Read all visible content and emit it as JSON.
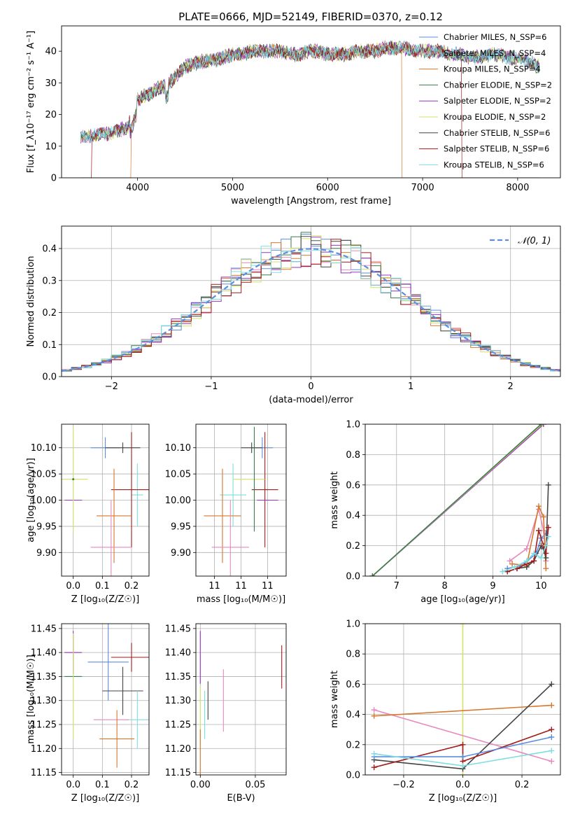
{
  "figure": {
    "title": "PLATE=0666, MJD=52149, FIBERID=0370, z=0.12"
  },
  "colors": {
    "Chabrier MILES": "#5b8ee0",
    "Salpeter MILES": "#e889bd",
    "Kroupa MILES": "#d9772b",
    "Chabrier ELODIE": "#3d7a4d",
    "Salpeter ELODIE": "#9b30c4",
    "Kroupa ELODIE": "#d4e26a",
    "Chabrier STELIB": "#444444",
    "Salpeter STELIB": "#a31c1c",
    "Kroupa STELIB": "#7fdde0",
    "gauss": "#5b8ee0",
    "grid": "#b0b0b0"
  },
  "chart_data": [
    {
      "id": "spectrum",
      "type": "line",
      "xlabel": "wavelength [Angstrom, rest frame]",
      "ylabel": "Flux [f_λ10⁻¹⁷ erg cm⁻² s⁻¹ A⁻¹]",
      "xlim": [
        3200,
        8450
      ],
      "ylim": [
        0,
        48
      ],
      "xticks": [
        4000,
        5000,
        6000,
        7000,
        8000
      ],
      "yticks": [
        0,
        10,
        20,
        30,
        40
      ],
      "grid": false,
      "legend": "top-right",
      "legend_entries": [
        "Chabrier MILES, N_SSP=6",
        "Salpeter MILES, N_SSP=4",
        "Kroupa MILES, N_SSP=4",
        "Chabrier ELODIE, N_SSP=2",
        "Salpeter ELODIE, N_SSP=2",
        "Kroupa ELODIE, N_SSP=2",
        "Chabrier STELIB, N_SSP=6",
        "Salpeter STELIB, N_SSP=6",
        "Kroupa STELIB, N_SSP=6"
      ],
      "continuum": {
        "x": [
          3400,
          3500,
          3600,
          3700,
          3800,
          3900,
          3950,
          4000,
          4100,
          4200,
          4300,
          4400,
          4500,
          4600,
          4700,
          4800,
          4900,
          5000,
          5100,
          5200,
          5300,
          5400,
          5500,
          5600,
          5700,
          5800,
          5900,
          6000,
          6100,
          6200,
          6300,
          6400,
          6500,
          6600,
          6700,
          6800,
          6900,
          7000,
          7100,
          7200,
          7300,
          7400,
          7500,
          7600,
          7700,
          7800,
          7900,
          8000,
          8100,
          8230
        ],
        "y": [
          13,
          13,
          14,
          14,
          15,
          16,
          21,
          25,
          26,
          28,
          29,
          32,
          35,
          36,
          37,
          37,
          38,
          39,
          39,
          40,
          40,
          40,
          40,
          39,
          39,
          40,
          40,
          39,
          39,
          39,
          40,
          40,
          40,
          41,
          41,
          41,
          40,
          40,
          40,
          40,
          39,
          39,
          38,
          38,
          39,
          39,
          38,
          38,
          37,
          35
        ]
      },
      "drop_edges": [
        {
          "model": "Salpeter STELIB",
          "wl": [
            3520,
            7410
          ]
        },
        {
          "model": "Kroupa MILES",
          "wl": [
            3930,
            6780
          ]
        }
      ]
    },
    {
      "id": "residuals",
      "type": "histogram",
      "xlabel": "(data-model)/error",
      "ylabel": "Normed distribution",
      "xlim": [
        -2.5,
        2.5
      ],
      "ylim": [
        0,
        0.47
      ],
      "xticks": [
        -2,
        -1,
        0,
        1,
        2
      ],
      "yticks": [
        0.0,
        0.1,
        0.2,
        0.3,
        0.4
      ],
      "grid": true,
      "legend": "top-right",
      "gauss_label": "𝒩(0, 1)"
    },
    {
      "id": "age-vs-Z",
      "type": "errorbar",
      "xlabel": "Z [log₁₀(Z/Z☉)]",
      "ylabel": "age  [log₁₀(age/yr)]",
      "xlim": [
        -0.04,
        0.26
      ],
      "ylim": [
        9.855,
        10.145
      ],
      "xticks": [
        0.0,
        0.1,
        0.2
      ],
      "yticks": [
        9.9,
        9.95,
        10.0,
        10.05,
        10.1
      ],
      "points": [
        {
          "model": "Chabrier MILES",
          "x": 0.11,
          "y": 10.1,
          "xerr": 0.05,
          "yerr": 0.02
        },
        {
          "model": "Chabrier STELIB",
          "x": 0.17,
          "y": 10.1,
          "xerr": 0.06,
          "yerr": 0.01
        },
        {
          "model": "Kroupa STELIB",
          "x": 0.22,
          "y": 10.01,
          "xerr": 0.02,
          "yerr": 0.06
        },
        {
          "model": "Salpeter STELIB",
          "x": 0.2,
          "y": 10.02,
          "xerr": 0.07,
          "yerr": 0.11
        },
        {
          "model": "Salpeter ELODIE",
          "x": 0.0,
          "y": 10.0,
          "xerr": 0.03,
          "yerr": 0.0
        },
        {
          "model": "Kroupa ELODIE",
          "x": 0.0,
          "y": 10.04,
          "xerr": 0.05,
          "yerr": 0.1
        },
        {
          "model": "Chabrier ELODIE",
          "x": 0.0,
          "y": 10.04,
          "xerr": 0.0,
          "yerr": 0.0
        },
        {
          "model": "Kroupa MILES",
          "x": 0.14,
          "y": 9.97,
          "xerr": 0.06,
          "yerr": 0.09
        },
        {
          "model": "Salpeter MILES",
          "x": 0.13,
          "y": 9.91,
          "xerr": 0.07,
          "yerr": 0.09
        }
      ]
    },
    {
      "id": "age-vs-mass",
      "type": "errorbar",
      "xlabel": "mass [log₁₀(M/M☉)]",
      "ylabel": "",
      "xlim": [
        11.13,
        11.47
      ],
      "ylim": [
        9.855,
        10.145
      ],
      "xticks": [
        11.2,
        11.3,
        11.4
      ],
      "yticks": [
        9.9,
        9.95,
        10.0,
        10.05,
        10.1
      ],
      "points": [
        {
          "model": "Chabrier MILES",
          "x": 11.38,
          "y": 10.1,
          "xerr": 0.04,
          "yerr": 0.02
        },
        {
          "model": "Chabrier STELIB",
          "x": 11.34,
          "y": 10.1,
          "xerr": 0.04,
          "yerr": 0.01
        },
        {
          "model": "Kroupa STELIB",
          "x": 11.27,
          "y": 10.01,
          "xerr": 0.05,
          "yerr": 0.06
        },
        {
          "model": "Salpeter STELIB",
          "x": 11.39,
          "y": 10.02,
          "xerr": 0.05,
          "yerr": 0.11
        },
        {
          "model": "Salpeter ELODIE",
          "x": 11.4,
          "y": 10.0,
          "xerr": 0.04,
          "yerr": 0.0
        },
        {
          "model": "Kroupa ELODIE",
          "x": 11.33,
          "y": 10.04,
          "xerr": 0.06,
          "yerr": 0.0
        },
        {
          "model": "Chabrier ELODIE",
          "x": 11.35,
          "y": 10.04,
          "xerr": 0.0,
          "yerr": 0.1
        },
        {
          "model": "Kroupa MILES",
          "x": 11.23,
          "y": 9.97,
          "xerr": 0.07,
          "yerr": 0.09
        },
        {
          "model": "Salpeter MILES",
          "x": 11.26,
          "y": 9.91,
          "xerr": 0.07,
          "yerr": 0.09
        }
      ]
    },
    {
      "id": "weight-vs-age",
      "type": "line",
      "xlabel": "age  [log₁₀(age/yr)]",
      "ylabel": "mass weight",
      "xlim": [
        6.35,
        10.4
      ],
      "ylim": [
        0,
        1.0
      ],
      "xticks": [
        7,
        8,
        9,
        10
      ],
      "yticks": [
        0.0,
        0.2,
        0.4,
        0.6,
        0.8,
        1.0
      ],
      "grid": true,
      "series": [
        {
          "model": "Salpeter ELODIE",
          "x": [
            6.5,
            10.05
          ],
          "y": [
            0.0,
            1.0
          ]
        },
        {
          "model": "Kroupa ELODIE",
          "x": [
            6.5,
            10.02
          ],
          "y": [
            0.0,
            1.0
          ]
        },
        {
          "model": "Chabrier ELODIE",
          "x": [
            6.5,
            10.0
          ],
          "y": [
            0.0,
            1.0
          ]
        },
        {
          "model": "Chabrier MILES",
          "x": [
            9.3,
            9.6,
            9.9,
            10.0,
            10.1
          ],
          "y": [
            0.05,
            0.07,
            0.15,
            0.25,
            0.28
          ]
        },
        {
          "model": "Salpeter MILES",
          "x": [
            9.35,
            9.7,
            9.95,
            10.05,
            10.1
          ],
          "y": [
            0.1,
            0.18,
            0.44,
            0.3,
            0.1
          ]
        },
        {
          "model": "Kroupa MILES",
          "x": [
            9.4,
            9.7,
            9.95,
            10.05,
            10.1
          ],
          "y": [
            0.08,
            0.07,
            0.46,
            0.39,
            0.05
          ]
        },
        {
          "model": "Chabrier STELIB",
          "x": [
            9.3,
            9.5,
            9.7,
            9.85,
            10.0,
            10.05,
            10.1,
            10.15
          ],
          "y": [
            0.03,
            0.05,
            0.06,
            0.1,
            0.2,
            0.18,
            0.12,
            0.6
          ]
        },
        {
          "model": "Salpeter STELIB",
          "x": [
            9.3,
            9.5,
            9.7,
            9.85,
            9.95,
            10.05,
            10.1,
            10.15
          ],
          "y": [
            0.03,
            0.05,
            0.08,
            0.1,
            0.3,
            0.2,
            0.15,
            0.32
          ]
        },
        {
          "model": "Kroupa STELIB",
          "x": [
            9.2,
            9.45,
            9.7,
            9.85,
            10.0,
            10.1,
            10.15
          ],
          "y": [
            0.03,
            0.06,
            0.1,
            0.15,
            0.12,
            0.2,
            0.26
          ]
        }
      ]
    },
    {
      "id": "mass-vs-Z",
      "type": "errorbar",
      "xlabel": "Z [log₁₀(Z/Z☉)]",
      "ylabel": "mass [log₁₀(M/M☉)]",
      "xlim": [
        -0.04,
        0.26
      ],
      "ylim": [
        11.145,
        11.46
      ],
      "xticks": [
        0.0,
        0.1,
        0.2
      ],
      "yticks": [
        11.15,
        11.2,
        11.25,
        11.3,
        11.35,
        11.4,
        11.45
      ],
      "points": [
        {
          "model": "Salpeter ELODIE",
          "x": 0.0,
          "y": 11.4,
          "xerr": 0.03,
          "yerr": 0.045
        },
        {
          "model": "Salpeter STELIB",
          "x": 0.2,
          "y": 11.39,
          "xerr": 0.07,
          "yerr": 0.03
        },
        {
          "model": "Chabrier MILES",
          "x": 0.12,
          "y": 11.38,
          "xerr": 0.07,
          "yerr": 0.08
        },
        {
          "model": "Chabrier ELODIE",
          "x": 0.0,
          "y": 11.35,
          "xerr": 0.03,
          "yerr": 0.0
        },
        {
          "model": "Kroupa ELODIE",
          "x": 0.0,
          "y": 11.33,
          "xerr": 0.0,
          "yerr": 0.11
        },
        {
          "model": "Chabrier STELIB",
          "x": 0.17,
          "y": 11.32,
          "xerr": 0.07,
          "yerr": 0.05
        },
        {
          "model": "Kroupa STELIB",
          "x": 0.22,
          "y": 11.26,
          "xerr": 0.04,
          "yerr": 0.06
        },
        {
          "model": "Salpeter MILES",
          "x": 0.13,
          "y": 11.26,
          "xerr": 0.06,
          "yerr": 0.0
        },
        {
          "model": "Kroupa MILES",
          "x": 0.15,
          "y": 11.22,
          "xerr": 0.06,
          "yerr": 0.06
        }
      ]
    },
    {
      "id": "mass-vs-ebv",
      "type": "errorbar",
      "xlabel": "E(B-V)",
      "ylabel": "",
      "xlim": [
        -0.004,
        0.078
      ],
      "ylim": [
        11.145,
        11.46
      ],
      "xticks": [
        0.0,
        0.05
      ],
      "yticks": [
        11.15,
        11.2,
        11.25,
        11.3,
        11.35,
        11.4,
        11.45
      ],
      "points": [
        {
          "model": "Salpeter ELODIE",
          "x": 0.0,
          "y": 11.39,
          "xerr": 0,
          "yerr": 0.055
        },
        {
          "model": "Kroupa ELODIE",
          "x": 0.0,
          "y": 11.27,
          "xerr": 0,
          "yerr": 0.06
        },
        {
          "model": "Kroupa MILES",
          "x": 0.0,
          "y": 11.19,
          "xerr": 0,
          "yerr": 0.05
        },
        {
          "model": "Chabrier STELIB",
          "x": 0.007,
          "y": 11.3,
          "xerr": 0,
          "yerr": 0.04
        },
        {
          "model": "Kroupa STELIB",
          "x": 0.004,
          "y": 11.27,
          "xerr": 0,
          "yerr": 0.05
        },
        {
          "model": "Salpeter MILES",
          "x": 0.021,
          "y": 11.3,
          "xerr": 0,
          "yerr": 0.065
        },
        {
          "model": "Salpeter STELIB",
          "x": 0.074,
          "y": 11.37,
          "xerr": 0,
          "yerr": 0.045
        }
      ]
    },
    {
      "id": "weight-vs-Z",
      "type": "line",
      "xlabel": "Z [log₁₀(Z/Z☉)]",
      "ylabel": "mass weight",
      "xlim": [
        -0.33,
        0.33
      ],
      "ylim": [
        0,
        1.0
      ],
      "xticks": [
        -0.2,
        0.0,
        0.2
      ],
      "yticks": [
        0.0,
        0.2,
        0.4,
        0.6,
        0.8,
        1.0
      ],
      "grid": true,
      "series": [
        {
          "model": "Kroupa ELODIE",
          "x": [
            0.0,
            0.0
          ],
          "y": [
            0.0,
            1.0
          ]
        },
        {
          "model": "Salpeter MILES",
          "x": [
            -0.3,
            0.3
          ],
          "y": [
            0.43,
            0.09
          ]
        },
        {
          "model": "Kroupa MILES",
          "x": [
            -0.3,
            0.3
          ],
          "y": [
            0.39,
            0.46
          ]
        },
        {
          "model": "Chabrier STELIB",
          "x": [
            -0.3,
            0.0,
            0.3
          ],
          "y": [
            0.1,
            0.04,
            0.6
          ]
        },
        {
          "model": "Salpeter STELIB",
          "x": [
            -0.3,
            0.0,
            0.0,
            0.3
          ],
          "y": [
            0.05,
            0.2,
            0.09,
            0.3
          ]
        },
        {
          "model": "Chabrier MILES",
          "x": [
            -0.3,
            0.0,
            0.3
          ],
          "y": [
            0.12,
            0.12,
            0.25
          ]
        },
        {
          "model": "Kroupa STELIB",
          "x": [
            -0.3,
            0.0,
            0.3
          ],
          "y": [
            0.14,
            0.06,
            0.16
          ]
        }
      ]
    }
  ]
}
